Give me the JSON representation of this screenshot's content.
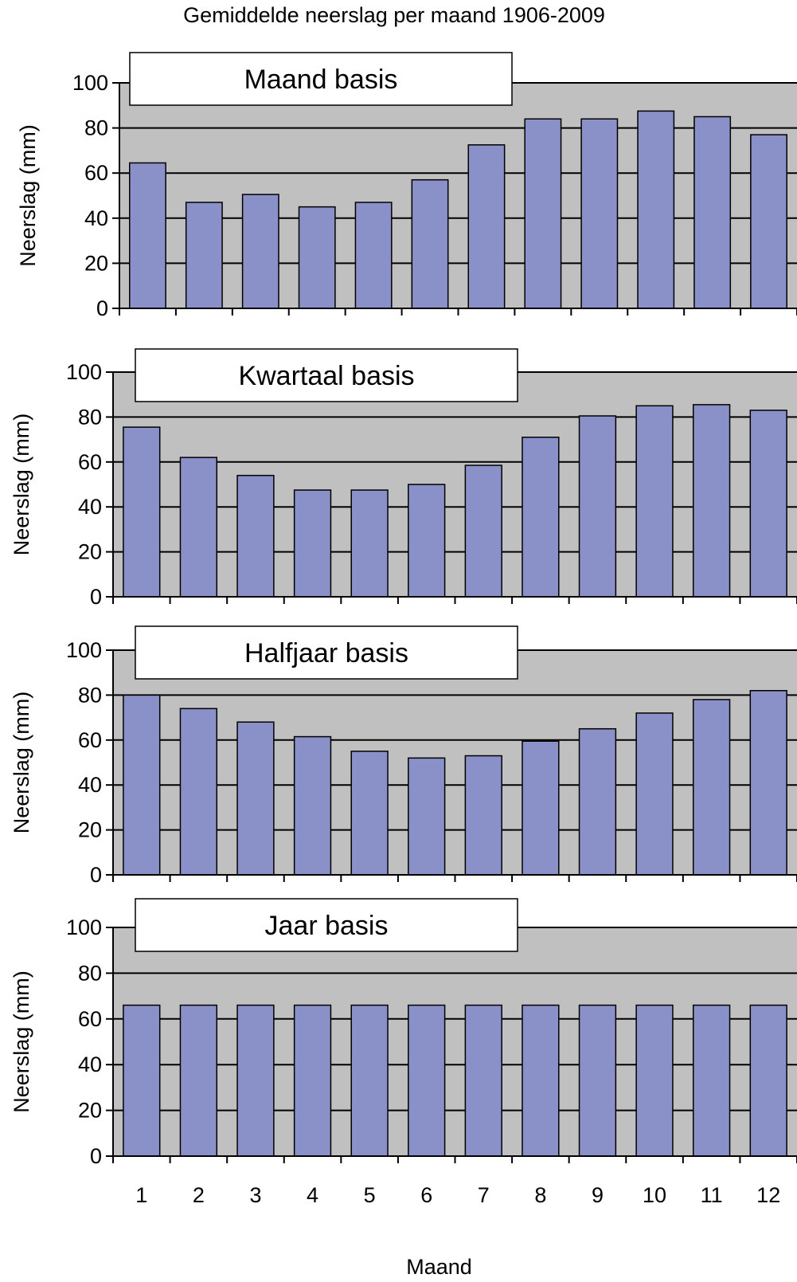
{
  "title": "Gemiddelde neerslag per maand 1906-2009",
  "colors": {
    "plot_bg": "#c0c0c0",
    "bar_fill": "#8a90c8",
    "bar_stroke": "#000000",
    "gridline": "#000000",
    "box_bg": "#ffffff"
  },
  "chart_data": [
    {
      "type": "bar",
      "panel_label": "Maand basis",
      "ylabel": "Neerslag (mm)",
      "xlabel": "",
      "ylim": [
        0,
        100
      ],
      "yticks": [
        0,
        20,
        40,
        60,
        80,
        100
      ],
      "grid": true,
      "categories": [
        "1",
        "2",
        "3",
        "4",
        "5",
        "6",
        "7",
        "8",
        "9",
        "10",
        "11",
        "12"
      ],
      "values": [
        64.5,
        47,
        50.5,
        45,
        47,
        57,
        72.5,
        84,
        84,
        87.5,
        85,
        77
      ]
    },
    {
      "type": "bar",
      "panel_label": "Kwartaal basis",
      "ylabel": "Neerslag (mm)",
      "xlabel": "",
      "ylim": [
        0,
        100
      ],
      "yticks": [
        0,
        20,
        40,
        60,
        80,
        100
      ],
      "grid": true,
      "categories": [
        "1",
        "2",
        "3",
        "4",
        "5",
        "6",
        "7",
        "8",
        "9",
        "10",
        "11",
        "12"
      ],
      "values": [
        75.5,
        62,
        54,
        47.5,
        47.5,
        50,
        58.5,
        71,
        80.5,
        85,
        85.5,
        83
      ]
    },
    {
      "type": "bar",
      "panel_label": "Halfjaar basis",
      "ylabel": "Neerslag (mm)",
      "xlabel": "",
      "ylim": [
        0,
        100
      ],
      "yticks": [
        0,
        20,
        40,
        60,
        80,
        100
      ],
      "grid": true,
      "categories": [
        "1",
        "2",
        "3",
        "4",
        "5",
        "6",
        "7",
        "8",
        "9",
        "10",
        "11",
        "12"
      ],
      "values": [
        80,
        74,
        68,
        61.5,
        55,
        52,
        53,
        59.5,
        65,
        72,
        78,
        82
      ]
    },
    {
      "type": "bar",
      "panel_label": "Jaar basis",
      "ylabel": "Neerslag (mm)",
      "xlabel": "Maand",
      "ylim": [
        0,
        100
      ],
      "yticks": [
        0,
        20,
        40,
        60,
        80,
        100
      ],
      "grid": true,
      "categories": [
        "1",
        "2",
        "3",
        "4",
        "5",
        "6",
        "7",
        "8",
        "9",
        "10",
        "11",
        "12"
      ],
      "values": [
        66,
        66,
        66,
        66,
        66,
        66,
        66,
        66,
        66,
        66,
        66,
        66
      ]
    }
  ]
}
